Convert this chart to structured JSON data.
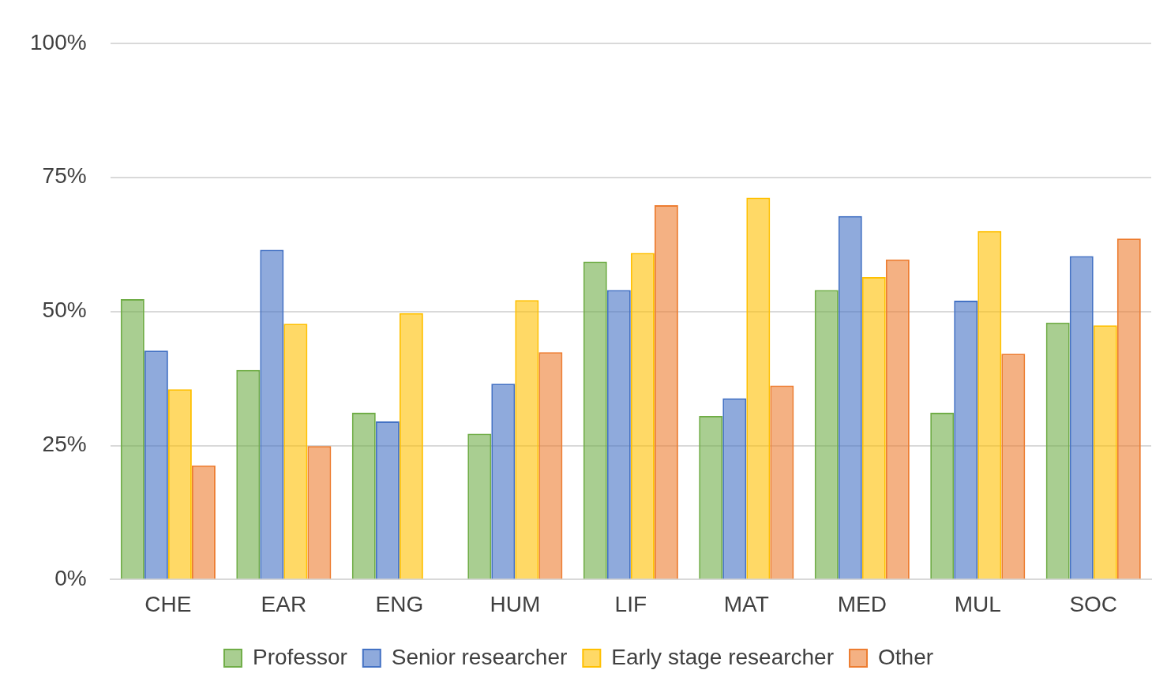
{
  "chart_data": {
    "type": "bar",
    "categories": [
      "CHE",
      "EAR",
      "ENG",
      "HUM",
      "LIF",
      "MAT",
      "MED",
      "MUL",
      "SOC"
    ],
    "series": [
      {
        "name": "Professor",
        "color": "#70ad47",
        "values": [
          52.3,
          39.1,
          31.1,
          27.2,
          59.3,
          30.5,
          54.0,
          31.1,
          47.9
        ]
      },
      {
        "name": "Senior researcher",
        "color": "#4472c4",
        "values": [
          42.7,
          61.5,
          29.5,
          36.5,
          54.0,
          33.8,
          67.8,
          52.0,
          60.3
        ]
      },
      {
        "name": "Early stage researcher",
        "color": "#ffc000",
        "values": [
          35.5,
          47.7,
          49.7,
          52.1,
          60.9,
          71.2,
          56.4,
          65.0,
          47.4
        ]
      },
      {
        "name": "Other",
        "color": "#ed7d31",
        "values": [
          21.3,
          24.9,
          null,
          42.4,
          69.8,
          36.2,
          59.7,
          42.1,
          63.6
        ]
      }
    ],
    "ylim": [
      0,
      100
    ],
    "yticks": [
      {
        "value": 0,
        "label": "0%"
      },
      {
        "value": 25,
        "label": "25%"
      },
      {
        "value": 50,
        "label": "50%"
      },
      {
        "value": 75,
        "label": "75%"
      },
      {
        "value": 100,
        "label": "100%"
      }
    ],
    "grid": "y",
    "legend": "bottom"
  }
}
